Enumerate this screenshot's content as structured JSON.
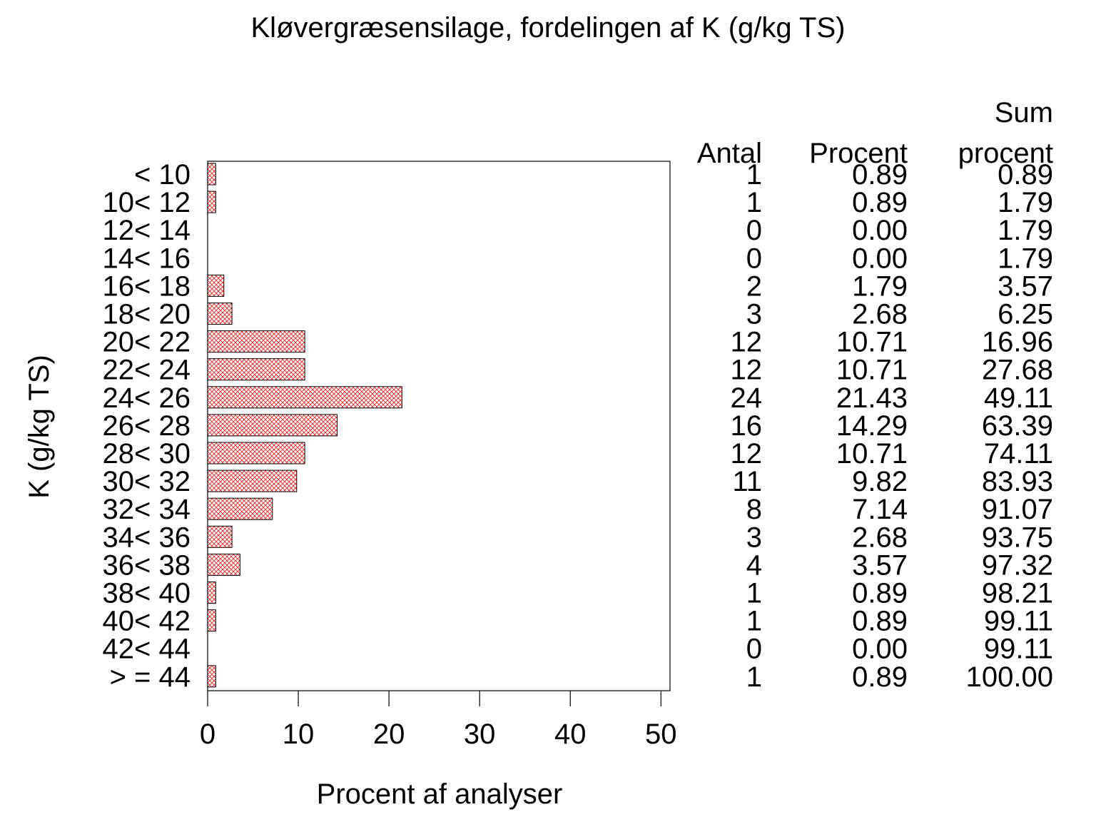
{
  "chart_data": {
    "type": "bar",
    "orientation": "horizontal",
    "title": "Kløvergræsensilage, fordelingen af K (g/kg TS)",
    "xlabel": "Procent af analyser",
    "ylabel": "K (g/kg TS)",
    "xlim": [
      0,
      51
    ],
    "xticks": [
      "0",
      "10",
      "20",
      "30",
      "40",
      "50"
    ],
    "xtick_values": [
      0,
      10,
      20,
      30,
      40,
      50
    ],
    "grid": false,
    "bar_fill": "crosshatch",
    "colors": {
      "bar_hatch": "#ff0000",
      "bar_border": "#000000",
      "axis": "#000000"
    },
    "categories": [
      "< 10",
      "10< 12",
      "12< 14",
      "14< 16",
      "16< 18",
      "18< 20",
      "20< 22",
      "22< 24",
      "24< 26",
      "26< 28",
      "28< 30",
      "30< 32",
      "32< 34",
      "34< 36",
      "36< 38",
      "38< 40",
      "40< 42",
      "42< 44",
      "> = 44"
    ],
    "values": [
      0.89,
      0.89,
      0,
      0,
      1.79,
      2.68,
      10.71,
      10.71,
      21.43,
      14.29,
      10.71,
      9.82,
      7.14,
      2.68,
      3.57,
      0.89,
      0.89,
      0,
      0.89
    ],
    "table": {
      "headers": {
        "antal": [
          "Antal"
        ],
        "procent": [
          "Procent"
        ],
        "sum": [
          "Sum",
          "procent"
        ]
      },
      "antal": [
        "1",
        "1",
        "0",
        "0",
        "2",
        "3",
        "12",
        "12",
        "24",
        "16",
        "12",
        "11",
        "8",
        "3",
        "4",
        "1",
        "1",
        "0",
        "1"
      ],
      "procent": [
        "0.89",
        "0.89",
        "0.00",
        "0.00",
        "1.79",
        "2.68",
        "10.71",
        "10.71",
        "21.43",
        "14.29",
        "10.71",
        "9.82",
        "7.14",
        "2.68",
        "3.57",
        "0.89",
        "0.89",
        "0.00",
        "0.89"
      ],
      "sum_procent": [
        "0.89",
        "1.79",
        "1.79",
        "1.79",
        "3.57",
        "6.25",
        "16.96",
        "27.68",
        "49.11",
        "63.39",
        "74.11",
        "83.93",
        "91.07",
        "93.75",
        "97.32",
        "98.21",
        "99.11",
        "99.11",
        "100.00"
      ]
    }
  }
}
